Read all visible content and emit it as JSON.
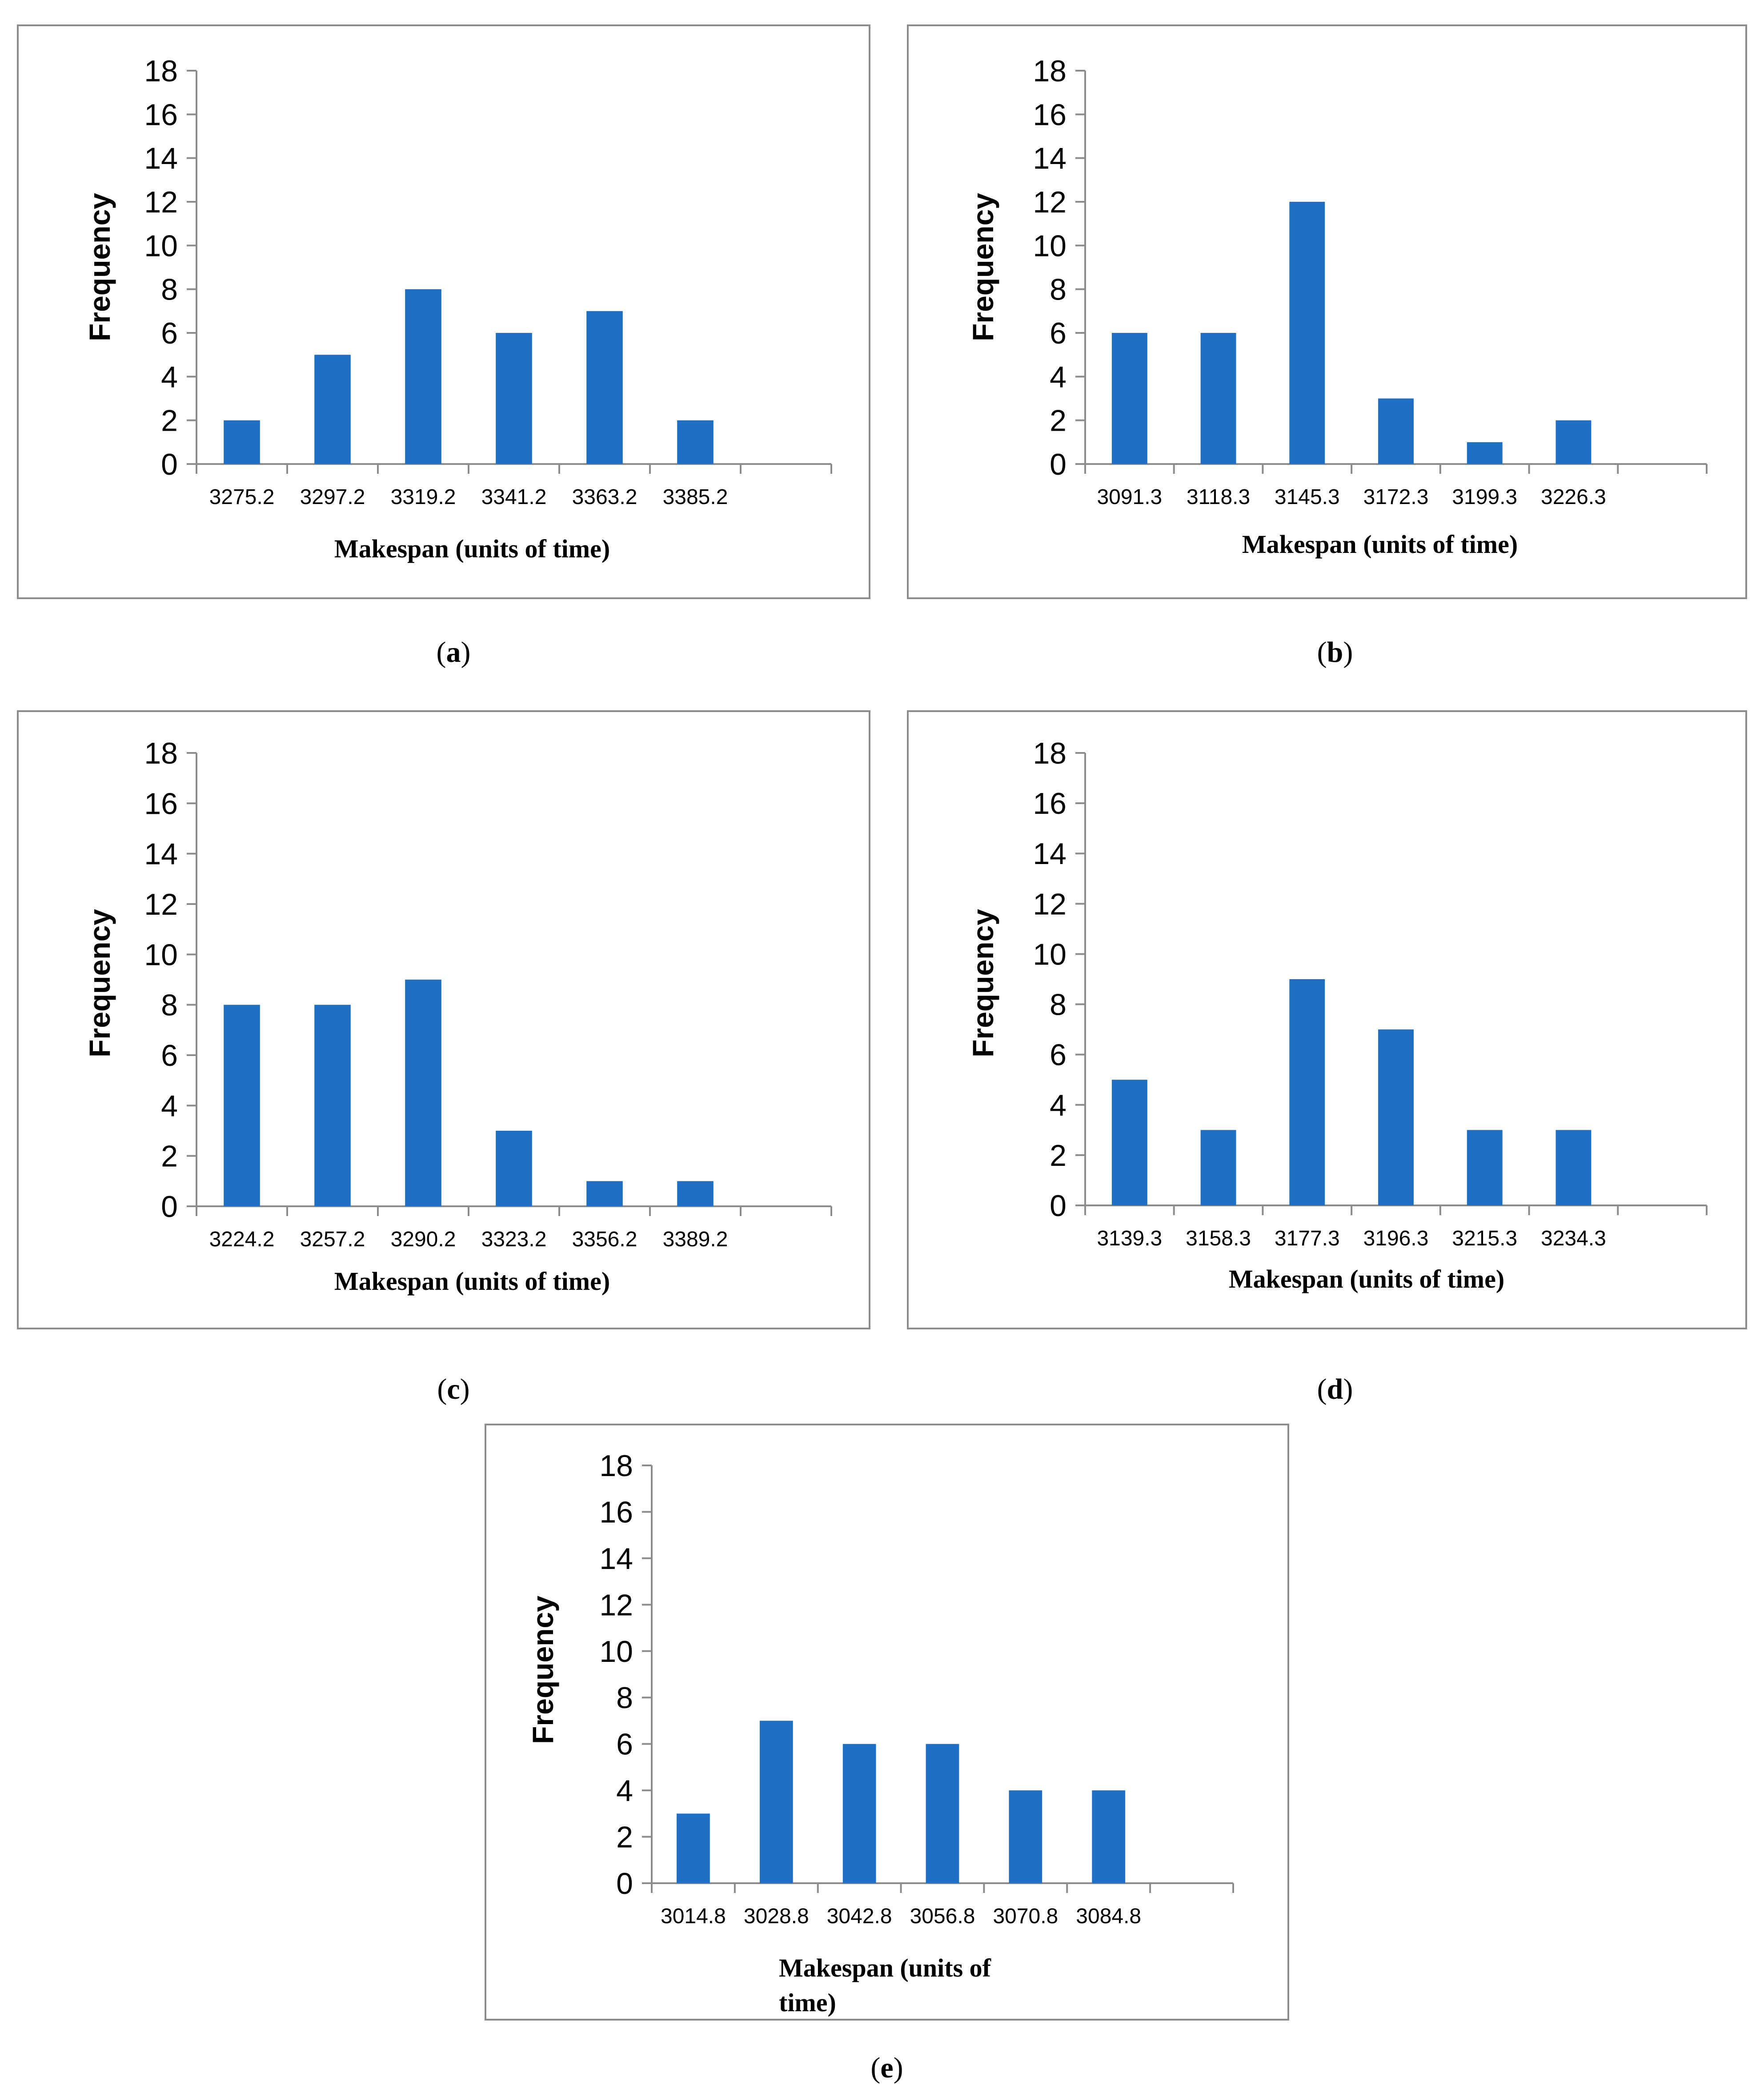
{
  "colors": {
    "bar": "#1f6fc5",
    "axis": "#8c8c8c",
    "frame": "#8c8c8c"
  },
  "chart_data": [
    {
      "id": "a",
      "type": "bar",
      "caption_letter": "a",
      "categories": [
        "3275.2",
        "3297.2",
        "3319.2",
        "3341.2",
        "3363.2",
        "3385.2"
      ],
      "values": [
        2,
        5,
        8,
        6,
        7,
        2
      ],
      "ylabel": "Frequency",
      "xlabel": "Makespan (units of time)",
      "ylim": [
        0,
        18
      ],
      "yticks": [
        "0",
        "2",
        "4",
        "6",
        "8",
        "10",
        "12",
        "14",
        "16",
        "18"
      ],
      "grid": false
    },
    {
      "id": "b",
      "type": "bar",
      "caption_letter": "b",
      "categories": [
        "3091.3",
        "3118.3",
        "3145.3",
        "3172.3",
        "3199.3",
        "3226.3"
      ],
      "values": [
        6,
        6,
        12,
        3,
        1,
        2
      ],
      "ylabel": "Frequency",
      "xlabel": "Makespan (units of time)",
      "ylim": [
        0,
        18
      ],
      "yticks": [
        "0",
        "2",
        "4",
        "6",
        "8",
        "10",
        "12",
        "14",
        "16",
        "18"
      ],
      "grid": false
    },
    {
      "id": "c",
      "type": "bar",
      "caption_letter": "c",
      "categories": [
        "3224.2",
        "3257.2",
        "3290.2",
        "3323.2",
        "3356.2",
        "3389.2"
      ],
      "values": [
        8,
        8,
        9,
        3,
        1,
        1
      ],
      "ylabel": "Frequency",
      "xlabel": "Makespan (units of time)",
      "ylim": [
        0,
        18
      ],
      "yticks": [
        "0",
        "2",
        "4",
        "6",
        "8",
        "10",
        "12",
        "14",
        "16",
        "18"
      ],
      "grid": false
    },
    {
      "id": "d",
      "type": "bar",
      "caption_letter": "d",
      "categories": [
        "3139.3",
        "3158.3",
        "3177.3",
        "3196.3",
        "3215.3",
        "3234.3"
      ],
      "values": [
        5,
        3,
        9,
        7,
        3,
        3
      ],
      "ylabel": "Frequency",
      "xlabel": "Makespan (units of time)",
      "ylim": [
        0,
        18
      ],
      "yticks": [
        "0",
        "2",
        "4",
        "6",
        "8",
        "10",
        "12",
        "14",
        "16",
        "18"
      ],
      "grid": false
    },
    {
      "id": "e",
      "type": "bar",
      "caption_letter": "e",
      "categories": [
        "3014.8",
        "3028.8",
        "3042.8",
        "3056.8",
        "3070.8",
        "3084.8"
      ],
      "values": [
        3,
        7,
        6,
        6,
        4,
        4
      ],
      "ylabel": "Frequency",
      "xlabel": "Makespan (units of time)",
      "xlabel_lines": [
        "Makespan (units of",
        "time)"
      ],
      "ylim": [
        0,
        18
      ],
      "yticks": [
        "0",
        "2",
        "4",
        "6",
        "8",
        "10",
        "12",
        "14",
        "16",
        "18"
      ],
      "grid": false
    }
  ]
}
